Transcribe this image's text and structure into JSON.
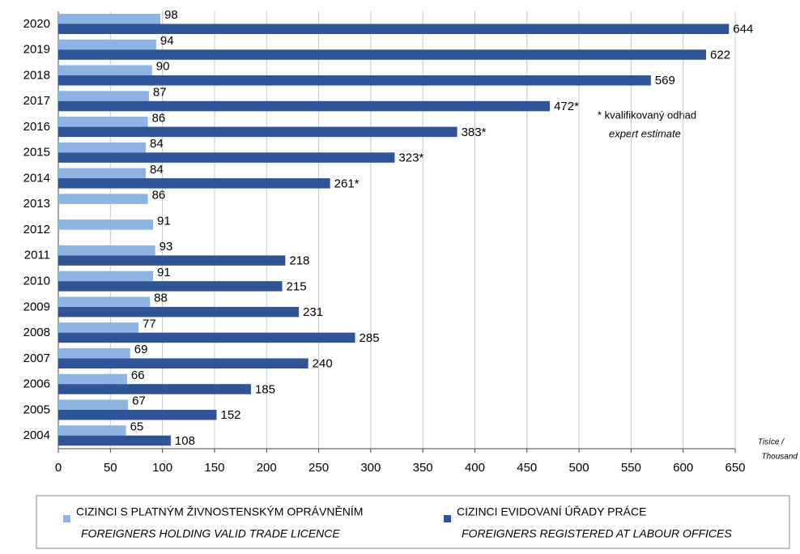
{
  "chart_data": {
    "type": "bar",
    "orientation": "horizontal",
    "categories": [
      "2020",
      "2019",
      "2018",
      "2017",
      "2016",
      "2015",
      "2014",
      "2013",
      "2012",
      "2011",
      "2010",
      "2009",
      "2008",
      "2007",
      "2006",
      "2005",
      "2004"
    ],
    "series": [
      {
        "name": "CIZINCI S PLATNÝM ŽIVNOSTENSKÝM OPRÁVNĚNÍM",
        "name_en": "FOREIGNERS HOLDING VALID TRADE LICENCE",
        "color": "#8db4e2",
        "values": [
          98,
          94,
          90,
          87,
          86,
          84,
          84,
          86,
          91,
          93,
          91,
          88,
          77,
          69,
          66,
          67,
          65
        ]
      },
      {
        "name": "CIZINCI EVIDOVANÍ ÚŘADY PRÁCE",
        "name_en": "FOREIGNERS REGISTERED AT LABOUR OFFICES",
        "color": "#2f5597",
        "values": [
          644,
          622,
          569,
          472,
          383,
          323,
          261,
          null,
          null,
          218,
          215,
          231,
          285,
          240,
          185,
          152,
          108
        ],
        "value_labels": [
          "644",
          "622",
          "569",
          "472*",
          "383*",
          "323*",
          "261*",
          null,
          null,
          "218",
          "215",
          "231",
          "285",
          "240",
          "185",
          "152",
          "108"
        ]
      }
    ],
    "xlabel": [
      "Tisíce /",
      "Thousand"
    ],
    "annotation": [
      "* kvalifikovaný odhad",
      "expert estimate"
    ],
    "xlim": [
      0,
      650
    ],
    "xticks": [
      0,
      50,
      100,
      150,
      200,
      250,
      300,
      350,
      400,
      450,
      500,
      550,
      600,
      650
    ],
    "grid": true
  }
}
